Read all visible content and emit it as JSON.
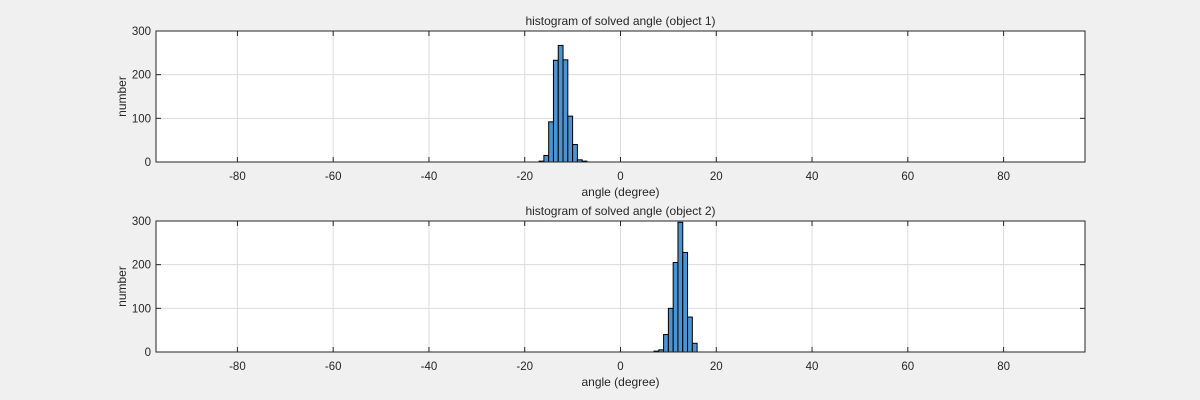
{
  "chart_data": [
    {
      "type": "bar",
      "title": "histogram of solved angle (object 1)",
      "xlabel": "angle (degree)",
      "ylabel": "number",
      "xlim": [
        -97,
        97
      ],
      "ylim": [
        0,
        300
      ],
      "xticks": [
        -80,
        -60,
        -40,
        -20,
        0,
        20,
        40,
        60,
        80
      ],
      "yticks": [
        0,
        100,
        200,
        300
      ],
      "grid": true,
      "bar_color": "#4d93d1",
      "bin_width": 1,
      "bins": [
        {
          "x0": -17,
          "x1": -16,
          "value": 2
        },
        {
          "x0": -16,
          "x1": -15,
          "value": 15
        },
        {
          "x0": -15,
          "x1": -14,
          "value": 92
        },
        {
          "x0": -14,
          "x1": -13,
          "value": 233
        },
        {
          "x0": -13,
          "x1": -12,
          "value": 267
        },
        {
          "x0": -12,
          "x1": -11,
          "value": 234
        },
        {
          "x0": -11,
          "x1": -10,
          "value": 105
        },
        {
          "x0": -10,
          "x1": -9,
          "value": 40
        },
        {
          "x0": -9,
          "x1": -8,
          "value": 5
        },
        {
          "x0": -8,
          "x1": -7,
          "value": 2
        }
      ]
    },
    {
      "type": "bar",
      "title": "histogram of solved angle (object 2)",
      "xlabel": "angle (degree)",
      "ylabel": "number",
      "xlim": [
        -97,
        97
      ],
      "ylim": [
        0,
        300
      ],
      "xticks": [
        -80,
        -60,
        -40,
        -20,
        0,
        20,
        40,
        60,
        80
      ],
      "yticks": [
        0,
        100,
        200,
        300
      ],
      "grid": true,
      "bar_color": "#4d93d1",
      "bin_width": 1,
      "bins": [
        {
          "x0": 7,
          "x1": 8,
          "value": 2
        },
        {
          "x0": 8,
          "x1": 9,
          "value": 5
        },
        {
          "x0": 9,
          "x1": 10,
          "value": 40
        },
        {
          "x0": 10,
          "x1": 11,
          "value": 100
        },
        {
          "x0": 11,
          "x1": 12,
          "value": 205
        },
        {
          "x0": 12,
          "x1": 13,
          "value": 297
        },
        {
          "x0": 13,
          "x1": 14,
          "value": 228
        },
        {
          "x0": 14,
          "x1": 15,
          "value": 80
        },
        {
          "x0": 15,
          "x1": 16,
          "value": 20
        }
      ]
    }
  ]
}
